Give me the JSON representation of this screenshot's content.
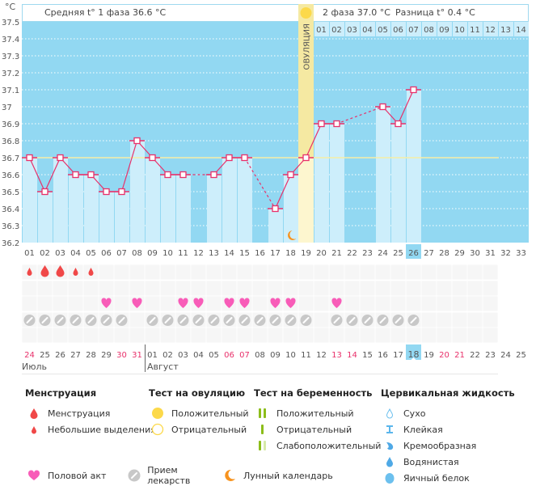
{
  "header": {
    "unit": "°C",
    "phase1": "Средняя t° 1 фаза 36.6 °C",
    "phase2": "2 фаза 37.0 °C",
    "difference": "Разница t° 0.4 °C",
    "ovulation_label": "ОВУЛЯЦИЯ"
  },
  "colors": {
    "plot_bg": "#92d8f2",
    "bar": "#cdeefb",
    "line": "#e8306a",
    "ovulation": "#f5e9a2",
    "coverline": "#f7eea6",
    "highlight": "#92d8f2",
    "red_day": "#e8306a"
  },
  "chart_data": {
    "type": "bar",
    "title": "",
    "xlabel": "",
    "ylabel": "°C",
    "ylim": [
      36.2,
      37.5
    ],
    "yticks": [
      "37.5",
      "37.4",
      "37.3",
      "37.2",
      "37.1",
      "37",
      "36.9",
      "36.8",
      "36.7",
      "36.6",
      "36.5",
      "36.4",
      "36.3",
      "36.2"
    ],
    "cycle_days": [
      "01",
      "02",
      "03",
      "04",
      "05",
      "06",
      "07",
      "08",
      "09",
      "10",
      "11",
      "12",
      "13",
      "14",
      "15",
      "16",
      "17",
      "18",
      "19",
      "20",
      "21",
      "22",
      "23",
      "24",
      "25",
      "26",
      "27",
      "28",
      "29",
      "30",
      "31",
      "32",
      "33"
    ],
    "temperatures": [
      36.7,
      36.5,
      36.7,
      36.6,
      36.6,
      36.5,
      36.5,
      36.8,
      36.7,
      36.6,
      36.6,
      null,
      36.6,
      36.7,
      36.7,
      null,
      36.4,
      36.6,
      36.7,
      36.9,
      36.9,
      null,
      null,
      37.0,
      36.9,
      37.1,
      null,
      null,
      null,
      null,
      null,
      null,
      null
    ],
    "coverline": 36.7,
    "ovulation_day": 19,
    "current_day": 26,
    "moon_day": 18,
    "phase2_days": [
      "01",
      "02",
      "03",
      "04",
      "05",
      "06",
      "07",
      "08",
      "09",
      "10",
      "11",
      "12",
      "13",
      "14"
    ],
    "calendar_days": [
      "24",
      "25",
      "26",
      "27",
      "28",
      "29",
      "30",
      "31",
      "01",
      "02",
      "03",
      "04",
      "05",
      "06",
      "07",
      "08",
      "09",
      "10",
      "11",
      "12",
      "13",
      "14",
      "15",
      "16",
      "17",
      "18",
      "19",
      "20",
      "21",
      "22",
      "23",
      "24",
      "25"
    ],
    "red_calendar_days": [
      1,
      7,
      8,
      14,
      15,
      21,
      22,
      28,
      29
    ],
    "current_calendar_index": 26,
    "months": [
      "Июль",
      "Август"
    ],
    "month_break_index": 9,
    "menstruation": [
      "small",
      "large",
      "large",
      "small",
      "small",
      null,
      null,
      null,
      null,
      null,
      null,
      null,
      null,
      null,
      null,
      null,
      null,
      null,
      null,
      null,
      null,
      null,
      null,
      null,
      null,
      null,
      null,
      null,
      null,
      null,
      null,
      null,
      null
    ],
    "intercourse_days": [
      6,
      8,
      11,
      12,
      14,
      15,
      17,
      18,
      21
    ],
    "medication_days": [
      1,
      2,
      3,
      4,
      5,
      6,
      7,
      9,
      10,
      11,
      12,
      13,
      14,
      15,
      16,
      17,
      18,
      19,
      21,
      22,
      23,
      24,
      25,
      26
    ]
  },
  "legend": {
    "menstruation": {
      "title": "Менструация",
      "items": [
        "Менструация",
        "Небольшие выделения"
      ]
    },
    "ovulation_test": {
      "title": "Тест на овуляцию",
      "items": [
        "Положительный",
        "Отрицательный"
      ]
    },
    "pregnancy_test": {
      "title": "Тест на беременность",
      "items": [
        "Положительный",
        "Отрицательный",
        "Слабоположительный"
      ]
    },
    "cervical": {
      "title": "Цервикальная жидкость",
      "items": [
        "Сухо",
        "Клейкая",
        "Кремообразная",
        "Водянистая",
        "Яичный белок"
      ]
    },
    "bottom": [
      "Половой акт",
      "Прием лекарств",
      "Лунный календарь"
    ]
  }
}
